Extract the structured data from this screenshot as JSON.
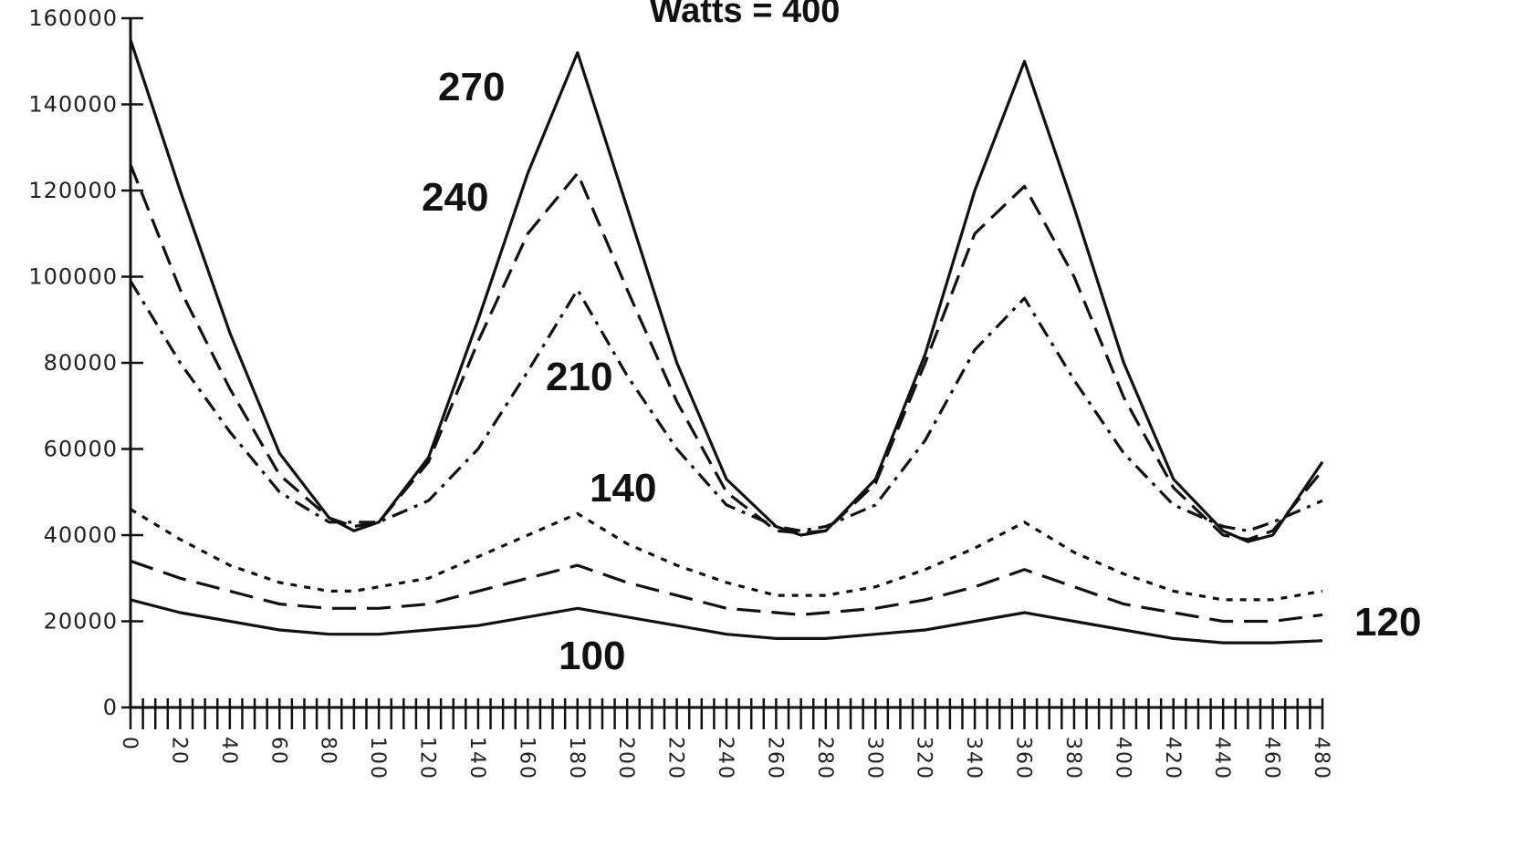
{
  "chart_data": {
    "type": "line",
    "title": "Watts = 400",
    "xlabel": "",
    "ylabel": "",
    "xlim": [
      0,
      480
    ],
    "ylim": [
      0,
      160000
    ],
    "x_tick_labels": [
      "0",
      "20",
      "40",
      "60",
      "80",
      "100",
      "120",
      "140",
      "160",
      "180",
      "200",
      "220",
      "240",
      "260",
      "280",
      "300",
      "320",
      "340",
      "360",
      "380",
      "400",
      "420",
      "440",
      "460",
      "480"
    ],
    "y_tick_labels": [
      "0",
      "20000",
      "40000",
      "60000",
      "80000",
      "100000",
      "120000",
      "140000",
      "160000"
    ],
    "grid": false,
    "legend": "none",
    "x": [
      0,
      20,
      40,
      60,
      80,
      90,
      100,
      120,
      140,
      160,
      180,
      200,
      220,
      240,
      260,
      270,
      280,
      300,
      320,
      340,
      360,
      380,
      400,
      420,
      440,
      450,
      460,
      480
    ],
    "series": [
      {
        "style": "solid",
        "values": [
          155000,
          120000,
          87000,
          59000,
          44000,
          41000,
          43000,
          58000,
          90000,
          124000,
          152000,
          116000,
          80000,
          53000,
          42000,
          40000,
          41000,
          53000,
          82000,
          120000,
          150000,
          116000,
          80000,
          53000,
          41000,
          38500,
          40000,
          57000
        ]
      },
      {
        "style": "dash",
        "values": [
          126000,
          97000,
          74000,
          54000,
          44000,
          42000,
          43000,
          57000,
          85000,
          110000,
          124000,
          97000,
          71000,
          50000,
          41000,
          40500,
          41000,
          52000,
          80000,
          110000,
          121000,
          100000,
          72000,
          51000,
          40000,
          39000,
          41000,
          55000
        ]
      },
      {
        "style": "dashdot",
        "values": [
          99000,
          80000,
          64000,
          50000,
          43000,
          43000,
          43000,
          48000,
          60000,
          78000,
          97000,
          77000,
          60000,
          47000,
          42000,
          41000,
          42000,
          47000,
          62000,
          83000,
          95000,
          76000,
          59000,
          47000,
          42000,
          41000,
          43000,
          48000
        ]
      },
      {
        "style": "dot",
        "values": [
          46000,
          39000,
          33000,
          29000,
          27000,
          27000,
          28000,
          30000,
          35000,
          40000,
          45000,
          38000,
          33000,
          29000,
          26000,
          26000,
          26000,
          28000,
          32000,
          37000,
          43000,
          36000,
          31000,
          27000,
          25000,
          25000,
          25000,
          27000
        ]
      },
      {
        "style": "longdash",
        "values": [
          34000,
          30000,
          27000,
          24000,
          23000,
          23000,
          23000,
          24000,
          27000,
          30000,
          33000,
          29000,
          26000,
          23000,
          22000,
          21500,
          22000,
          23000,
          25000,
          28000,
          32000,
          28000,
          24000,
          22000,
          20000,
          20000,
          20000,
          21500
        ]
      },
      {
        "style": "solid-low",
        "values": [
          25000,
          22000,
          20000,
          18000,
          17000,
          17000,
          17000,
          18000,
          19000,
          21000,
          23000,
          21000,
          19000,
          17000,
          16000,
          16000,
          16000,
          17000,
          18000,
          20000,
          22000,
          20000,
          18000,
          16000,
          15000,
          15000,
          15000,
          15500
        ]
      }
    ],
    "annotations": [
      {
        "text": "270"
      },
      {
        "text": "240"
      },
      {
        "text": "210"
      },
      {
        "text": "140"
      },
      {
        "text": "120"
      },
      {
        "text": "100"
      }
    ]
  }
}
